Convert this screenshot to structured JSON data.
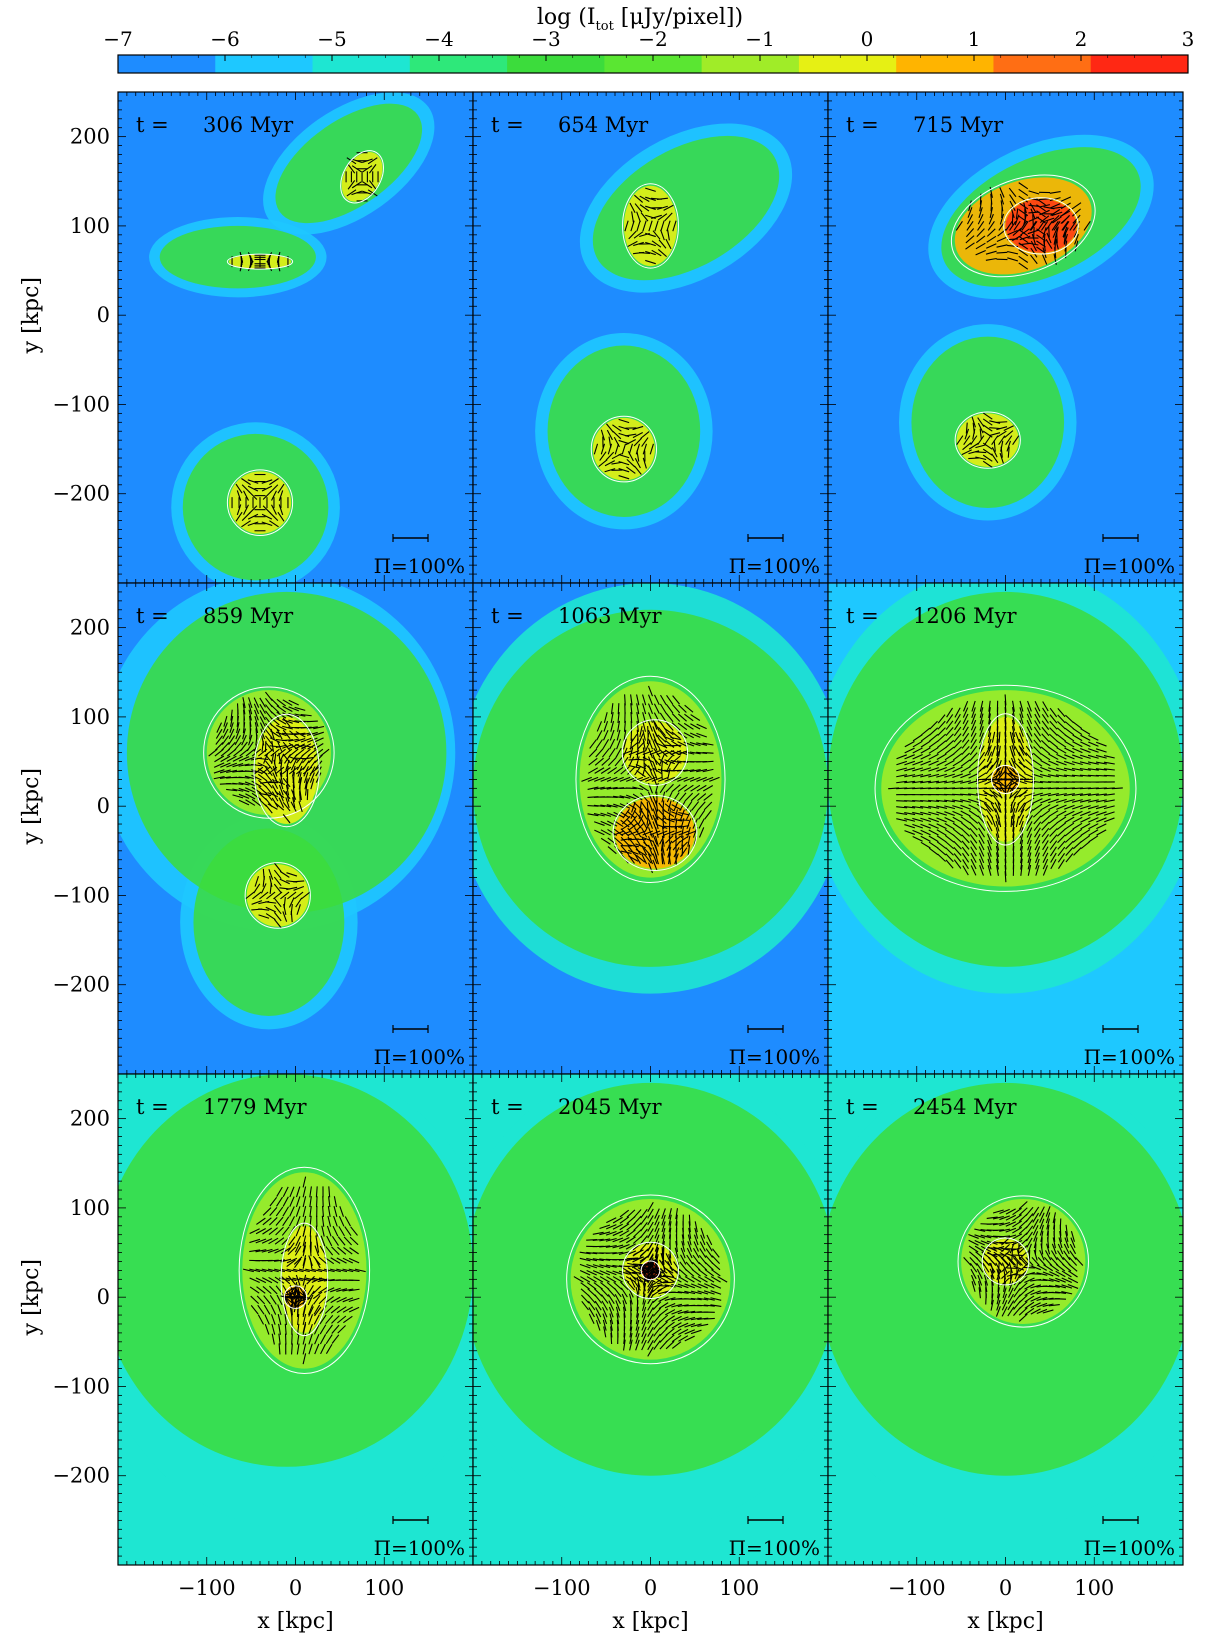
{
  "colorbar": {
    "title": "log (I_tot [μJy/pixel])",
    "title_main": "log (I",
    "title_sub": "tot",
    "title_rest": " [μJy/pixel])",
    "ticks": [
      "−7",
      "−6",
      "−5",
      "−4",
      "−3",
      "−2",
      "−1",
      "0",
      "1",
      "2",
      "3"
    ],
    "range": [
      -7,
      3
    ],
    "colors": [
      "#1e8cff",
      "#1ec8ff",
      "#1ee6d2",
      "#2ee87a",
      "#3cdc3c",
      "#5ae632",
      "#a0ec28",
      "#e6f014",
      "#ffb400",
      "#ff6e14",
      "#ff2814"
    ]
  },
  "panels": [
    {
      "label_t": "t =",
      "time": "306 Myr",
      "pol_label": "Π=100%"
    },
    {
      "label_t": "t =",
      "time": "654 Myr",
      "pol_label": "Π=100%"
    },
    {
      "label_t": "t =",
      "time": "715 Myr",
      "pol_label": "Π=100%"
    },
    {
      "label_t": "t =",
      "time": "859 Myr",
      "pol_label": "Π=100%"
    },
    {
      "label_t": "t =",
      "time": "1063 Myr",
      "pol_label": "Π=100%"
    },
    {
      "label_t": "t =",
      "time": "1206 Myr",
      "pol_label": "Π=100%"
    },
    {
      "label_t": "t =",
      "time": "1779 Myr",
      "pol_label": "Π=100%"
    },
    {
      "label_t": "t =",
      "time": "2045 Myr",
      "pol_label": "Π=100%"
    },
    {
      "label_t": "t =",
      "time": "2454 Myr",
      "pol_label": "Π=100%"
    }
  ],
  "axes": {
    "ylabel": "y [kpc]",
    "xlabel": "x [kpc]",
    "yticks": [
      "200",
      "100",
      "0",
      "−100",
      "−200"
    ],
    "xticks": [
      "−100",
      "0",
      "100"
    ]
  },
  "chart_data": {
    "type": "heatmap",
    "xlim": [
      -200,
      200
    ],
    "ylim": [
      -300,
      250
    ],
    "x_ticks": [
      -100,
      0,
      100
    ],
    "y_ticks": [
      -200,
      -100,
      0,
      100,
      200
    ],
    "color_range": [
      -7,
      3
    ],
    "grid": "3x3",
    "panels_time_myr": [
      306,
      654,
      715,
      859,
      1063,
      1206,
      1779,
      2045,
      2454
    ]
  }
}
